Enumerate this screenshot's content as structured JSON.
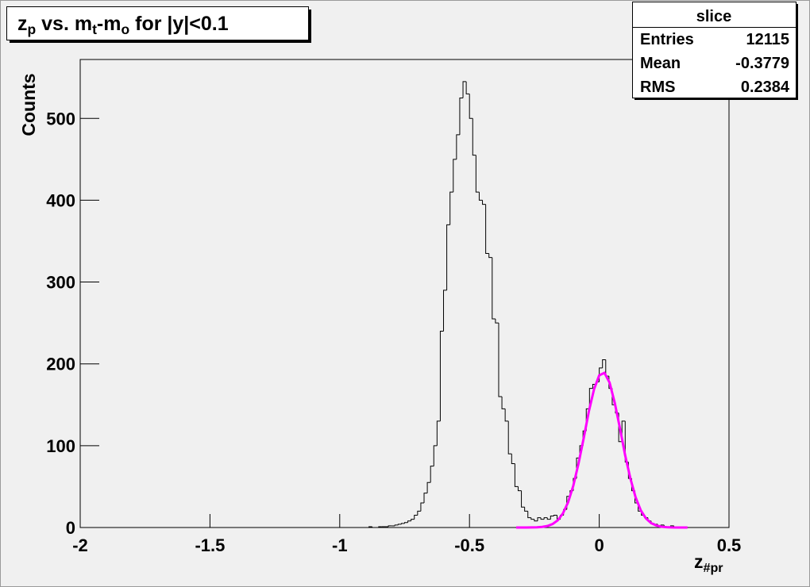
{
  "chart_data": {
    "type": "histogram",
    "title_parts": [
      {
        "text": "z"
      },
      {
        "text": "p",
        "sub": true
      },
      {
        "text": " vs. m"
      },
      {
        "text": "t",
        "sub": true
      },
      {
        "text": "-m"
      },
      {
        "text": "o",
        "sub": true
      },
      {
        "text": " for |y|<0.1"
      }
    ],
    "ylabel": "Counts",
    "xlabel_parts": [
      {
        "text": "z"
      },
      {
        "text": "#pr",
        "sub": true
      }
    ],
    "color": "#000000",
    "xlim": [
      -2,
      0.5
    ],
    "xticks": [
      -2,
      -1.5,
      -1,
      -0.5,
      0,
      0.5
    ],
    "ylim": [
      0,
      572
    ],
    "yticks": [
      0,
      100,
      200,
      300,
      400,
      500
    ],
    "bins": [
      -2,
      -1.9875,
      -1.975,
      -1.9625,
      -1.95,
      -1.9375,
      -1.925,
      -1.9125,
      -1.9,
      -1.8875,
      -1.875,
      -1.8625,
      -1.85,
      -1.8375,
      -1.825,
      -1.8125,
      -1.8,
      -1.7875,
      -1.775,
      -1.7625,
      -1.75,
      -1.7375,
      -1.725,
      -1.7125,
      -1.7,
      -1.6875,
      -1.675,
      -1.6625,
      -1.65,
      -1.6375,
      -1.625,
      -1.6125,
      -1.6,
      -1.5875,
      -1.575,
      -1.5625,
      -1.55,
      -1.5375,
      -1.525,
      -1.5125,
      -1.5,
      -1.4875,
      -1.475,
      -1.4625,
      -1.45,
      -1.4375,
      -1.425,
      -1.4125,
      -1.4,
      -1.3875,
      -1.375,
      -1.3625,
      -1.35,
      -1.3375,
      -1.325,
      -1.3125,
      -1.3,
      -1.2875,
      -1.275,
      -1.2625,
      -1.25,
      -1.2375,
      -1.225,
      -1.2125,
      -1.2,
      -1.1875,
      -1.175,
      -1.1625,
      -1.15,
      -1.1375,
      -1.125,
      -1.1125,
      -1.1,
      -1.0875,
      -1.075,
      -1.0625,
      -1.05,
      -1.0375,
      -1.025,
      -1.0125,
      -1,
      -0.9875,
      -0.975,
      -0.9625,
      -0.95,
      -0.9375,
      -0.925,
      -0.9125,
      -0.9,
      -0.8875,
      -0.875,
      -0.8625,
      -0.85,
      -0.8375,
      -0.825,
      -0.8125,
      -0.8,
      -0.7875,
      -0.775,
      -0.7625,
      -0.75,
      -0.7375,
      -0.725,
      -0.7125,
      -0.7,
      -0.6875,
      -0.675,
      -0.6625,
      -0.65,
      -0.6375,
      -0.625,
      -0.6125,
      -0.6,
      -0.5875,
      -0.575,
      -0.5625,
      -0.55,
      -0.5375,
      -0.525,
      -0.5125,
      -0.5,
      -0.4875,
      -0.475,
      -0.4625,
      -0.45,
      -0.4375,
      -0.425,
      -0.4125,
      -0.4,
      -0.3875,
      -0.375,
      -0.3625,
      -0.35,
      -0.3375,
      -0.325,
      -0.3125,
      -0.3,
      -0.2875,
      -0.275,
      -0.2625,
      -0.25,
      -0.2375,
      -0.225,
      -0.2125,
      -0.2,
      -0.1875,
      -0.175,
      -0.1625,
      -0.15,
      -0.1375,
      -0.125,
      -0.1125,
      -0.1,
      -0.0875,
      -0.075,
      -0.0625,
      -0.05,
      -0.0375,
      -0.025,
      -0.0125,
      0,
      0.0125,
      0.025,
      0.0375,
      0.05,
      0.0625,
      0.075,
      0.0875,
      0.1,
      0.1125,
      0.125,
      0.1375,
      0.15,
      0.1625,
      0.175,
      0.1875,
      0.2,
      0.2125,
      0.225,
      0.2375,
      0.25,
      0.2625,
      0.275,
      0.2875,
      0.3,
      0.3125,
      0.325,
      0.3375,
      0.35,
      0.3625,
      0.375,
      0.3875,
      0.4,
      0.4125,
      0.425,
      0.4375,
      0.45,
      0.4625,
      0.475,
      0.4875,
      0.5
    ],
    "values": [
      0,
      0,
      0,
      0,
      0,
      0,
      0,
      0,
      0,
      0,
      0,
      0,
      0,
      0,
      0,
      0,
      0,
      0,
      0,
      0,
      0,
      0,
      0,
      0,
      0,
      0,
      0,
      0,
      0,
      0,
      0,
      0,
      0,
      0,
      0,
      0,
      0,
      0,
      0,
      0,
      0,
      0,
      0,
      0,
      0,
      0,
      0,
      0,
      0,
      0,
      0,
      0,
      0,
      0,
      0,
      0,
      0,
      0,
      0,
      0,
      0,
      0,
      0,
      0,
      0,
      0,
      0,
      0,
      0,
      0,
      0,
      0,
      0,
      0,
      0,
      0,
      0,
      0,
      0,
      0,
      0,
      0,
      0,
      0,
      0,
      0,
      0,
      0,
      0,
      1,
      0,
      0,
      1,
      1,
      1,
      2,
      2,
      3,
      4,
      5,
      6,
      8,
      10,
      15,
      20,
      30,
      42,
      55,
      75,
      100,
      130,
      240,
      290,
      370,
      410,
      450,
      480,
      525,
      545,
      530,
      500,
      455,
      410,
      400,
      395,
      335,
      330,
      255,
      250,
      160,
      145,
      130,
      90,
      78,
      50,
      45,
      25,
      20,
      12,
      10,
      8,
      12,
      10,
      12,
      10,
      14,
      15,
      10,
      15,
      22,
      38,
      45,
      60,
      85,
      100,
      118,
      145,
      170,
      175,
      178,
      195,
      205,
      185,
      170,
      150,
      140,
      105,
      130,
      80,
      60,
      45,
      30,
      20,
      15,
      12,
      8,
      5,
      4,
      2,
      3,
      1,
      1,
      2,
      0,
      1,
      0,
      0,
      0,
      0,
      0,
      0,
      0,
      0,
      0,
      0,
      0,
      0,
      0,
      0,
      0
    ],
    "fit": {
      "color": "#ff00ff",
      "x": [
        -0.32,
        -0.3,
        -0.28,
        -0.26,
        -0.24,
        -0.22,
        -0.2,
        -0.18,
        -0.16,
        -0.14,
        -0.12,
        -0.1,
        -0.08,
        -0.06,
        -0.04,
        -0.02,
        0,
        0.02,
        0.04,
        0.06,
        0.08,
        0.1,
        0.12,
        0.14,
        0.16,
        0.18,
        0.2,
        0.22,
        0.24,
        0.26,
        0.28,
        0.3,
        0.32,
        0.34
      ],
      "values": [
        0,
        0,
        0,
        0.1,
        0.3,
        0.7,
        1.8,
        4.2,
        8.8,
        17.2,
        30.8,
        51,
        78,
        109,
        142,
        169,
        186,
        189,
        177,
        152,
        121,
        88,
        60,
        37,
        21,
        11.1,
        5.4,
        2.5,
        1,
        0.4,
        0.1,
        0,
        0,
        0
      ]
    },
    "stats": {
      "title": "slice",
      "rows": [
        [
          "Entries",
          12115
        ],
        [
          "Mean",
          -0.3779
        ],
        [
          "RMS",
          0.2384
        ]
      ]
    }
  }
}
